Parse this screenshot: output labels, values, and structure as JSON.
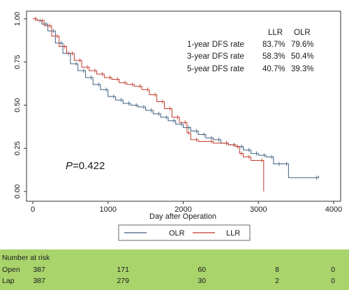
{
  "chart_data": {
    "type": "line",
    "subtype": "kaplan-meier",
    "xlabel": "Day after Operation",
    "ylabel": "",
    "xlim": [
      0,
      4000
    ],
    "ylim": [
      0,
      1
    ],
    "x_ticks": [
      0,
      1000,
      2000,
      3000,
      4000
    ],
    "y_ticks": [
      0.0,
      0.25,
      0.5,
      0.75,
      1.0
    ],
    "y_tick_labels": [
      "0.00",
      "0.25",
      "0.50",
      "0.75",
      "1.00"
    ],
    "grid": false,
    "legend_position": "bottom",
    "annotation_pvalue": {
      "italic_part": "P",
      "rest": "=0.422"
    },
    "rate_table": {
      "headers": [
        "LLR",
        "OLR"
      ],
      "rows": [
        {
          "label": "1-year DFS rate",
          "llr": "83.7%",
          "olr": "79.6%"
        },
        {
          "label": "3-year DFS rate",
          "llr": "58.3%",
          "olr": "50.4%"
        },
        {
          "label": "5-year DFS rate",
          "llr": "40.7%",
          "olr": "39.3%"
        }
      ]
    },
    "series": [
      {
        "name": "OLR",
        "color": "#3d5f7f",
        "points": [
          [
            0,
            1.0
          ],
          [
            60,
            0.99
          ],
          [
            120,
            0.97
          ],
          [
            200,
            0.93
          ],
          [
            300,
            0.86
          ],
          [
            400,
            0.8
          ],
          [
            500,
            0.74
          ],
          [
            600,
            0.7
          ],
          [
            700,
            0.66
          ],
          [
            800,
            0.62
          ],
          [
            900,
            0.59
          ],
          [
            1000,
            0.55
          ],
          [
            1100,
            0.53
          ],
          [
            1200,
            0.51
          ],
          [
            1300,
            0.5
          ],
          [
            1400,
            0.49
          ],
          [
            1500,
            0.47
          ],
          [
            1600,
            0.45
          ],
          [
            1700,
            0.43
          ],
          [
            1800,
            0.41
          ],
          [
            1900,
            0.39
          ],
          [
            2000,
            0.37
          ],
          [
            2100,
            0.35
          ],
          [
            2200,
            0.33
          ],
          [
            2300,
            0.31
          ],
          [
            2400,
            0.3
          ],
          [
            2500,
            0.28
          ],
          [
            2600,
            0.27
          ],
          [
            2700,
            0.26
          ],
          [
            2800,
            0.24
          ],
          [
            2900,
            0.22
          ],
          [
            3000,
            0.21
          ],
          [
            3100,
            0.2
          ],
          [
            3200,
            0.16
          ],
          [
            3300,
            0.16
          ],
          [
            3400,
            0.08
          ],
          [
            3800,
            0.08
          ],
          [
            3800,
            0.09
          ]
        ]
      },
      {
        "name": "LLR",
        "color": "#c0392b",
        "points": [
          [
            0,
            1.0
          ],
          [
            60,
            0.99
          ],
          [
            150,
            0.96
          ],
          [
            250,
            0.9
          ],
          [
            350,
            0.84
          ],
          [
            450,
            0.8
          ],
          [
            550,
            0.76
          ],
          [
            650,
            0.72
          ],
          [
            750,
            0.7
          ],
          [
            850,
            0.68
          ],
          [
            950,
            0.66
          ],
          [
            1050,
            0.65
          ],
          [
            1150,
            0.63
          ],
          [
            1250,
            0.62
          ],
          [
            1350,
            0.61
          ],
          [
            1450,
            0.59
          ],
          [
            1550,
            0.56
          ],
          [
            1650,
            0.52
          ],
          [
            1750,
            0.48
          ],
          [
            1850,
            0.43
          ],
          [
            1950,
            0.4
          ],
          [
            2050,
            0.34
          ],
          [
            2100,
            0.3
          ],
          [
            2200,
            0.29
          ],
          [
            2400,
            0.28
          ],
          [
            2600,
            0.27
          ],
          [
            2700,
            0.26
          ],
          [
            2750,
            0.22
          ],
          [
            2800,
            0.2
          ],
          [
            2900,
            0.18
          ],
          [
            3070,
            0.18
          ],
          [
            3070,
            0.0
          ]
        ]
      }
    ],
    "risk_table": {
      "title": "Number at risk",
      "rows": [
        {
          "label": "Open",
          "values": [
            "387",
            "171",
            "60",
            "8",
            "0"
          ]
        },
        {
          "label": "Lap",
          "values": [
            "387",
            "279",
            "30",
            "2",
            "0"
          ]
        }
      ]
    }
  }
}
